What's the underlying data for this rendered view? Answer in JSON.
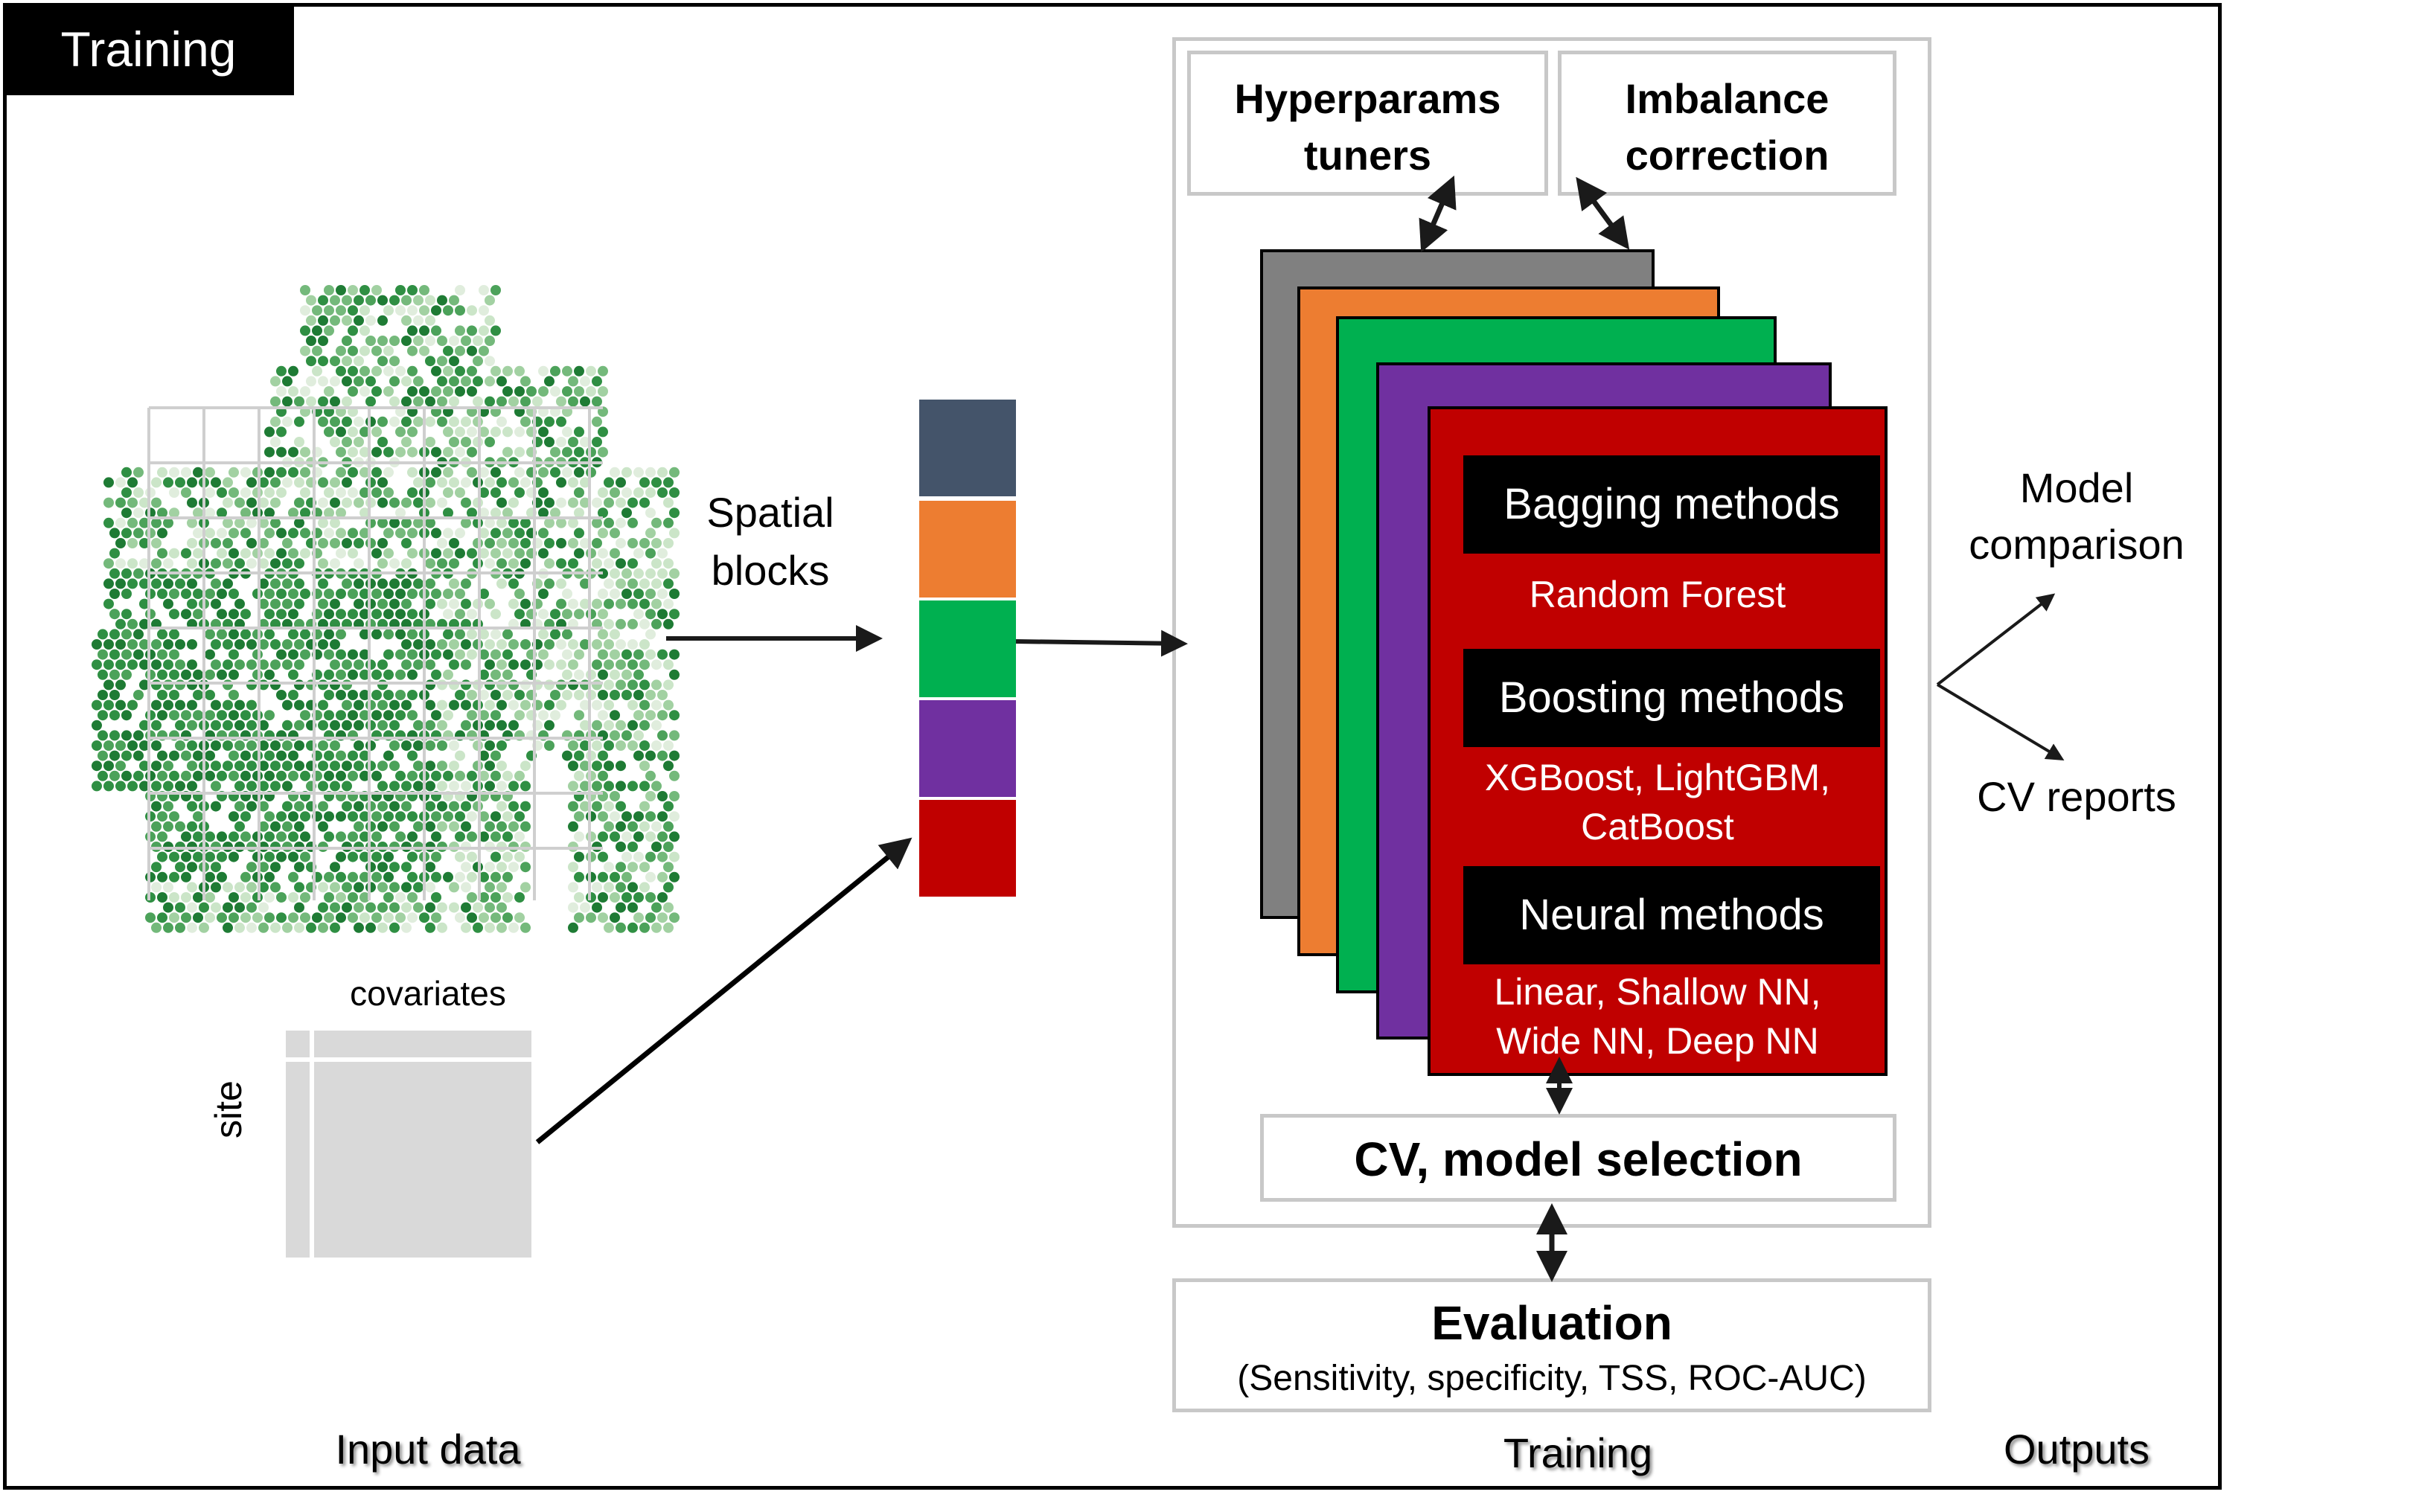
{
  "tag": {
    "label": "Training"
  },
  "input": {
    "spatial_blocks_label": "Spatial\nblocks",
    "covariates_label": "covariates",
    "site_label": "site",
    "section_label": "Input data"
  },
  "spatial_blocks": {
    "colors": [
      "#44546a",
      "#ed7d31",
      "#00b050",
      "#7030a0",
      "#c00000"
    ]
  },
  "training": {
    "hyperparams": "Hyperparams\ntuners",
    "imbalance": "Imbalance\ncorrection",
    "stack_colors": [
      "#808080",
      "#ed7d31",
      "#00b050",
      "#7030a0",
      "#c00000"
    ],
    "bagging_label": "Bagging methods",
    "bagging_models": "Random Forest",
    "boosting_label": "Boosting methods",
    "boosting_models": "XGBoost, LightGBM,\nCatBoost",
    "neural_label": "Neural methods",
    "neural_models": "Linear, Shallow NN,\nWide NN, Deep NN",
    "cv_selection": "CV, model selection",
    "evaluation_title": "Evaluation",
    "evaluation_metrics": "(Sensitivity, specificity, TSS, ROC-AUC)",
    "section_label": "Training"
  },
  "outputs": {
    "model_comparison": "Model\ncomparison",
    "cv_reports": "CV reports",
    "section_label": "Outputs"
  }
}
